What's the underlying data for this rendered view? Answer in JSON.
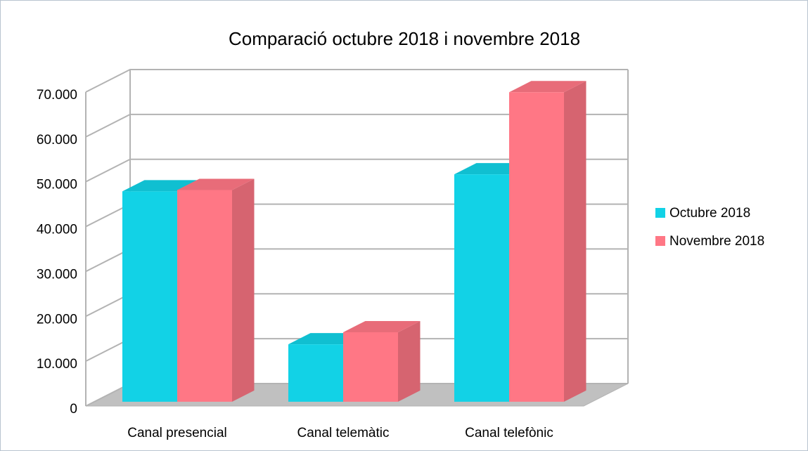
{
  "chart_data": {
    "type": "bar3d",
    "title": "Comparació octubre 2018 i novembre 2018",
    "categories": [
      "Canal presencial",
      "Canal telemàtic",
      "Canal telefònic"
    ],
    "series": [
      {
        "name": "Octubre 2018",
        "color": "#12d2e6",
        "values": [
          46900,
          12800,
          50700
        ]
      },
      {
        "name": "Novembre 2018",
        "color": "#ff7785",
        "values": [
          47200,
          15500,
          69000
        ]
      }
    ],
    "ylim": [
      0,
      70000
    ],
    "yticks": [
      0,
      {
        "value": 10000,
        "label": "10.000"
      },
      {
        "value": 20000,
        "label": "20.000"
      },
      {
        "value": 30000,
        "label": "30.000"
      },
      {
        "value": 40000,
        "label": "40.000"
      },
      {
        "value": 50000,
        "label": "50.000"
      },
      {
        "value": 60000,
        "label": "60.000"
      },
      {
        "value": 70000,
        "label": "70.000"
      }
    ],
    "grid": true,
    "legend": "right"
  }
}
